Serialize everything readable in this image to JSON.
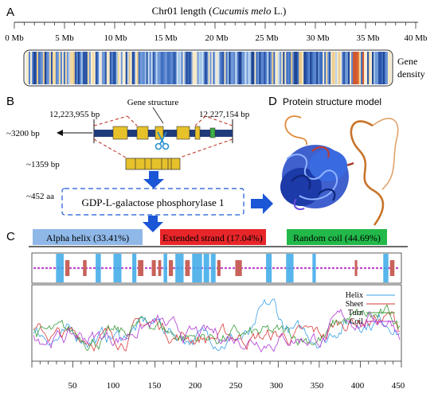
{
  "panels": {
    "a": "A",
    "b": "B",
    "c": "C",
    "d": "D"
  },
  "panel_a": {
    "title_prefix": "Chr01 length (",
    "title_species": "Cucumis melo",
    "title_suffix": " L.)",
    "axis_ticks": [
      "0 Mb",
      "5 Mb",
      "10 Mb",
      "15 Mb",
      "20 Mb",
      "25 Mb",
      "30 Mb",
      "35 Mb",
      "40 Mb"
    ],
    "density_label_line1": "Gene",
    "density_label_line2": "density"
  },
  "panel_b": {
    "gene_structure_label": "Gene structure",
    "coord_left": "12,223,955 bp",
    "coord_right": "12,227,154 bp",
    "genomic_length": "~3200 bp",
    "cds_length": "~1359 bp",
    "protein_length": "~452 aa",
    "protein_name": "GDP-L-galactose phosphorylase 1"
  },
  "panel_d": {
    "title": "Protein structure model"
  },
  "panel_c": {
    "legend": [
      {
        "label": "Alpha helix (33.41%)",
        "color": "#8fb8e8"
      },
      {
        "label": "Extended strand (17.04%)",
        "color": "#e8262a"
      },
      {
        "label": "Random coil (44.69%)",
        "color": "#22b94a"
      }
    ],
    "profile_legend": [
      "Helix",
      "Sheet",
      "Turn",
      "Coil"
    ],
    "x_ticks": [
      "50",
      "100",
      "150",
      "200",
      "250",
      "300",
      "350",
      "400",
      "450"
    ]
  },
  "colors": {
    "blue_arrow": "#1a56d6",
    "exon": "#e6c12a",
    "intron": "#1f3b7a",
    "dashed_red": "#c0392b"
  }
}
